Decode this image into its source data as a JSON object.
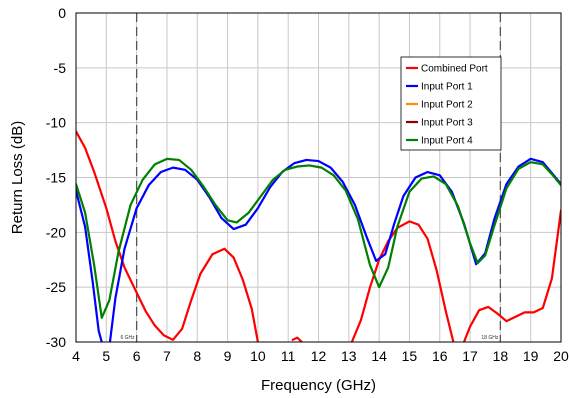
{
  "chart_data": {
    "type": "line",
    "xlabel": "Frequency (GHz)",
    "ylabel": "Return Loss (dB)",
    "xlim": [
      4,
      20
    ],
    "ylim": [
      -30,
      0
    ],
    "xticks": [
      4,
      5,
      6,
      7,
      8,
      9,
      10,
      11,
      12,
      13,
      14,
      15,
      16,
      17,
      18,
      19,
      20
    ],
    "yticks": [
      0,
      -5,
      -10,
      -15,
      -20,
      -25,
      -30
    ],
    "grid": true,
    "legend_position": "top-right",
    "markers": [
      {
        "x": 6,
        "label": "6 GHz"
      },
      {
        "x": 18,
        "label": "18 GHz"
      }
    ],
    "series": [
      {
        "name": "Combined Port",
        "color": "#ff0000",
        "points": [
          [
            4,
            -10.8
          ],
          [
            4.3,
            -12.3
          ],
          [
            4.6,
            -14.5
          ],
          [
            5,
            -17.8
          ],
          [
            5.3,
            -20.8
          ],
          [
            5.6,
            -23.2
          ],
          [
            6,
            -25.5
          ],
          [
            6.3,
            -27.2
          ],
          [
            6.6,
            -28.5
          ],
          [
            6.9,
            -29.4
          ],
          [
            7.2,
            -29.8
          ],
          [
            7.5,
            -28.8
          ],
          [
            7.8,
            -26.2
          ],
          [
            8.1,
            -23.8
          ],
          [
            8.5,
            -22
          ],
          [
            8.9,
            -21.5
          ],
          [
            9.2,
            -22.3
          ],
          [
            9.5,
            -24.3
          ],
          [
            9.8,
            -27
          ],
          [
            10,
            -30
          ],
          [
            null,
            null
          ],
          [
            11.15,
            -29.8
          ],
          [
            11.3,
            -29.6
          ],
          [
            11.45,
            -30
          ],
          [
            null,
            null
          ],
          [
            13.1,
            -30
          ],
          [
            13.4,
            -28
          ],
          [
            13.7,
            -25
          ],
          [
            14,
            -22.5
          ],
          [
            14.3,
            -20.8
          ],
          [
            14.6,
            -19.6
          ],
          [
            15,
            -19
          ],
          [
            15.3,
            -19.3
          ],
          [
            15.6,
            -20.6
          ],
          [
            15.9,
            -23.5
          ],
          [
            16.2,
            -27.2
          ],
          [
            16.45,
            -30
          ],
          [
            null,
            null
          ],
          [
            16.8,
            -30
          ],
          [
            17,
            -28.6
          ],
          [
            17.3,
            -27.1
          ],
          [
            17.6,
            -26.8
          ],
          [
            17.9,
            -27.4
          ],
          [
            18.2,
            -28.1
          ],
          [
            18.5,
            -27.7
          ],
          [
            18.8,
            -27.3
          ],
          [
            19.1,
            -27.3
          ],
          [
            19.4,
            -26.9
          ],
          [
            19.7,
            -24.2
          ],
          [
            20,
            -18
          ]
        ]
      },
      {
        "name": "Input Port 1",
        "color": "#0000ff",
        "points": [
          [
            4,
            -16.2
          ],
          [
            4.3,
            -19.5
          ],
          [
            4.55,
            -24.5
          ],
          [
            4.75,
            -29
          ],
          [
            4.85,
            -30
          ],
          [
            null,
            null
          ],
          [
            5.12,
            -30
          ],
          [
            5.3,
            -26
          ],
          [
            5.6,
            -21.5
          ],
          [
            6,
            -17.8
          ],
          [
            6.4,
            -15.7
          ],
          [
            6.8,
            -14.5
          ],
          [
            7.2,
            -14.1
          ],
          [
            7.6,
            -14.3
          ],
          [
            8,
            -15.2
          ],
          [
            8.4,
            -16.8
          ],
          [
            8.8,
            -18.7
          ],
          [
            9.2,
            -19.7
          ],
          [
            9.6,
            -19.3
          ],
          [
            10,
            -17.8
          ],
          [
            10.4,
            -15.9
          ],
          [
            10.8,
            -14.5
          ],
          [
            11.2,
            -13.7
          ],
          [
            11.6,
            -13.4
          ],
          [
            12,
            -13.5
          ],
          [
            12.4,
            -14.1
          ],
          [
            12.8,
            -15.4
          ],
          [
            13.2,
            -17.5
          ],
          [
            13.6,
            -20.5
          ],
          [
            13.9,
            -22.6
          ],
          [
            14.2,
            -22
          ],
          [
            14.5,
            -19.2
          ],
          [
            14.8,
            -16.7
          ],
          [
            15.2,
            -15
          ],
          [
            15.6,
            -14.5
          ],
          [
            16,
            -14.8
          ],
          [
            16.4,
            -16.3
          ],
          [
            16.8,
            -19.2
          ],
          [
            17.2,
            -22.9
          ],
          [
            17.5,
            -21.9
          ],
          [
            17.8,
            -18.8
          ],
          [
            18.2,
            -15.6
          ],
          [
            18.6,
            -14
          ],
          [
            19,
            -13.3
          ],
          [
            19.4,
            -13.6
          ],
          [
            19.7,
            -14.6
          ],
          [
            20,
            -15.6
          ]
        ]
      },
      {
        "name": "Input Port 2",
        "color": "#ff8c00",
        "points": []
      },
      {
        "name": "Input Port 3",
        "color": "#8b0000",
        "points": []
      },
      {
        "name": "Input Port 4",
        "color": "#008000",
        "points": [
          [
            4,
            -15.6
          ],
          [
            4.3,
            -18.2
          ],
          [
            4.6,
            -23
          ],
          [
            4.85,
            -27.8
          ],
          [
            5.1,
            -26.2
          ],
          [
            5.4,
            -21.8
          ],
          [
            5.8,
            -17.5
          ],
          [
            6.2,
            -15.2
          ],
          [
            6.6,
            -13.8
          ],
          [
            7,
            -13.3
          ],
          [
            7.4,
            -13.4
          ],
          [
            7.8,
            -14.3
          ],
          [
            8.2,
            -15.8
          ],
          [
            8.6,
            -17.5
          ],
          [
            9,
            -18.9
          ],
          [
            9.3,
            -19.1
          ],
          [
            9.7,
            -18.2
          ],
          [
            10.1,
            -16.7
          ],
          [
            10.5,
            -15.2
          ],
          [
            10.9,
            -14.3
          ],
          [
            11.3,
            -14
          ],
          [
            11.7,
            -13.9
          ],
          [
            12.1,
            -14.1
          ],
          [
            12.5,
            -14.8
          ],
          [
            12.9,
            -16.2
          ],
          [
            13.3,
            -18.8
          ],
          [
            13.7,
            -23
          ],
          [
            14,
            -25
          ],
          [
            14.3,
            -23.2
          ],
          [
            14.6,
            -19.5
          ],
          [
            15,
            -16.3
          ],
          [
            15.4,
            -15.1
          ],
          [
            15.8,
            -14.9
          ],
          [
            16.2,
            -15.6
          ],
          [
            16.6,
            -17.6
          ],
          [
            17,
            -21
          ],
          [
            17.25,
            -22.8
          ],
          [
            17.5,
            -22.1
          ],
          [
            17.8,
            -19.4
          ],
          [
            18.2,
            -16
          ],
          [
            18.6,
            -14.2
          ],
          [
            19,
            -13.6
          ],
          [
            19.4,
            -13.8
          ],
          [
            19.7,
            -14.7
          ],
          [
            20,
            -15.7
          ]
        ]
      }
    ]
  }
}
